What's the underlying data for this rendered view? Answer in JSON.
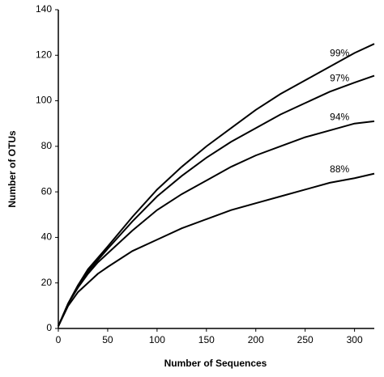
{
  "chart_data": {
    "type": "line",
    "x_label": "Number of Sequences",
    "y_label": "Number of OTUs",
    "x": [
      0,
      10,
      20,
      30,
      40,
      50,
      75,
      100,
      125,
      150,
      175,
      200,
      225,
      250,
      275,
      300,
      320
    ],
    "series": [
      {
        "name": "99%",
        "color": "#000000",
        "values": [
          1,
          11,
          19,
          26,
          31,
          36,
          49,
          61,
          71,
          80,
          88,
          96,
          103,
          109,
          115,
          121,
          125
        ]
      },
      {
        "name": "97%",
        "color": "#000000",
        "values": [
          1,
          11,
          19,
          25,
          30,
          35,
          47,
          58,
          67,
          75,
          82,
          88,
          94,
          99,
          104,
          108,
          111
        ]
      },
      {
        "name": "94%",
        "color": "#000000",
        "values": [
          1,
          11,
          18,
          24,
          29,
          33,
          43,
          52,
          59,
          65,
          71,
          76,
          80,
          84,
          87,
          90,
          91
        ]
      },
      {
        "name": "88%",
        "color": "#000000",
        "values": [
          1,
          10,
          16,
          20,
          24,
          27,
          34,
          39,
          44,
          48,
          52,
          55,
          58,
          61,
          64,
          66,
          68
        ]
      }
    ],
    "xlim": [
      0,
      320
    ],
    "ylim": [
      0,
      140
    ],
    "xticks": [
      0,
      50,
      100,
      150,
      200,
      250,
      300
    ],
    "yticks": [
      0,
      20,
      40,
      60,
      80,
      100,
      120,
      140
    ]
  }
}
